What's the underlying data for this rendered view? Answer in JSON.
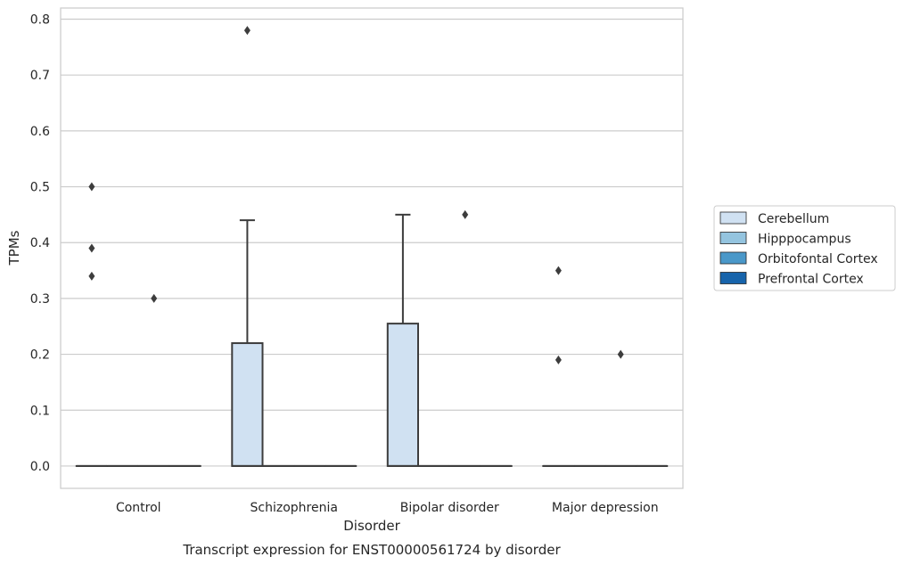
{
  "chart_data": {
    "type": "box",
    "title": "",
    "caption": "Transcript expression for ENST00000561724 by disorder",
    "xlabel": "Disorder",
    "ylabel": "TPMs",
    "ylim": [
      -0.04,
      0.82
    ],
    "yticks": [
      "0.0",
      "0.1",
      "0.2",
      "0.3",
      "0.4",
      "0.5",
      "0.6",
      "0.7",
      "0.8"
    ],
    "ytick_values": [
      0,
      0.1,
      0.2,
      0.3,
      0.4,
      0.5,
      0.6,
      0.7,
      0.8
    ],
    "grid": "horizontal",
    "legend_position": "right",
    "categories": [
      "Control",
      "Schizophrenia",
      "Bipolar disorder",
      "Major depression"
    ],
    "series": [
      {
        "name": "Cerebellum",
        "color": "#d0e1f2",
        "boxes": [
          {
            "category": "Control",
            "q1": 0,
            "median": 0,
            "q3": 0,
            "whisker_low": 0,
            "whisker_high": 0,
            "outliers": [
              0.5,
              0.39,
              0.34
            ]
          },
          {
            "category": "Schizophrenia",
            "q1": 0,
            "median": 0,
            "q3": 0.22,
            "whisker_low": 0,
            "whisker_high": 0.44,
            "outliers": [
              0.78
            ]
          },
          {
            "category": "Bipolar disorder",
            "q1": 0,
            "median": 0,
            "q3": 0.255,
            "whisker_low": 0,
            "whisker_high": 0.45,
            "outliers": []
          },
          {
            "category": "Major depression",
            "q1": 0,
            "median": 0,
            "q3": 0,
            "whisker_low": 0,
            "whisker_high": 0,
            "outliers": [
              0.35,
              0.19
            ]
          }
        ]
      },
      {
        "name": "Hipppocampus",
        "color": "#94c4df",
        "boxes": [
          {
            "category": "Control",
            "q1": 0,
            "median": 0,
            "q3": 0,
            "whisker_low": 0,
            "whisker_high": 0,
            "outliers": []
          },
          {
            "category": "Schizophrenia",
            "q1": 0,
            "median": 0,
            "q3": 0,
            "whisker_low": 0,
            "whisker_high": 0,
            "outliers": []
          },
          {
            "category": "Bipolar disorder",
            "q1": 0,
            "median": 0,
            "q3": 0,
            "whisker_low": 0,
            "whisker_high": 0,
            "outliers": []
          },
          {
            "category": "Major depression",
            "q1": 0,
            "median": 0,
            "q3": 0,
            "whisker_low": 0,
            "whisker_high": 0,
            "outliers": []
          }
        ]
      },
      {
        "name": "Orbitofontal Cortex",
        "color": "#4a98c9",
        "boxes": [
          {
            "category": "Control",
            "q1": 0,
            "median": 0,
            "q3": 0,
            "whisker_low": 0,
            "whisker_high": 0,
            "outliers": [
              0.3
            ]
          },
          {
            "category": "Schizophrenia",
            "q1": 0,
            "median": 0,
            "q3": 0,
            "whisker_low": 0,
            "whisker_high": 0,
            "outliers": []
          },
          {
            "category": "Bipolar disorder",
            "q1": 0,
            "median": 0,
            "q3": 0,
            "whisker_low": 0,
            "whisker_high": 0,
            "outliers": [
              0.45
            ]
          },
          {
            "category": "Major depression",
            "q1": 0,
            "median": 0,
            "q3": 0,
            "whisker_low": 0,
            "whisker_high": 0,
            "outliers": [
              0.2
            ]
          }
        ]
      },
      {
        "name": "Prefrontal Cortex",
        "color": "#1764ab",
        "boxes": [
          {
            "category": "Control",
            "q1": 0,
            "median": 0,
            "q3": 0,
            "whisker_low": 0,
            "whisker_high": 0,
            "outliers": []
          },
          {
            "category": "Schizophrenia",
            "q1": 0,
            "median": 0,
            "q3": 0,
            "whisker_low": 0,
            "whisker_high": 0,
            "outliers": []
          },
          {
            "category": "Bipolar disorder",
            "q1": 0,
            "median": 0,
            "q3": 0,
            "whisker_low": 0,
            "whisker_high": 0,
            "outliers": []
          },
          {
            "category": "Major depression",
            "q1": 0,
            "median": 0,
            "q3": 0,
            "whisker_low": 0,
            "whisker_high": 0,
            "outliers": []
          }
        ]
      }
    ]
  }
}
